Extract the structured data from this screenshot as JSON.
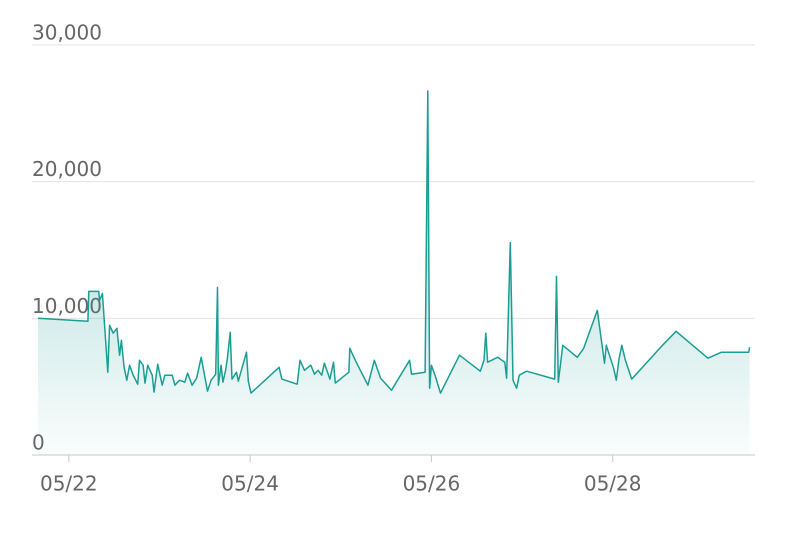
{
  "chart_data": {
    "type": "line",
    "x": [
      21.66,
      22.21,
      22.22,
      22.33,
      22.34,
      22.37,
      22.43,
      22.45,
      22.49,
      22.53,
      22.56,
      22.58,
      22.61,
      22.64,
      22.67,
      22.71,
      22.76,
      22.78,
      22.82,
      22.84,
      22.87,
      22.92,
      22.94,
      22.98,
      23.03,
      23.06,
      23.14,
      23.17,
      23.22,
      23.28,
      23.31,
      23.36,
      23.41,
      23.46,
      23.53,
      23.57,
      23.62,
      23.64,
      23.65,
      23.68,
      23.7,
      23.73,
      23.75,
      23.78,
      23.8,
      23.85,
      23.87,
      23.96,
      23.98,
      24.01,
      24.32,
      24.35,
      24.52,
      24.55,
      24.6,
      24.67,
      24.71,
      24.75,
      24.79,
      24.82,
      24.88,
      24.92,
      24.94,
      25.09,
      25.1,
      25.16,
      25.3,
      25.37,
      25.44,
      25.56,
      25.76,
      25.78,
      25.93,
      25.96,
      25.98,
      26.0,
      26.04,
      26.1,
      26.31,
      26.54,
      26.58,
      26.6,
      26.62,
      26.73,
      26.81,
      26.83,
      26.87,
      26.9,
      26.94,
      26.97,
      27.05,
      27.36,
      27.38,
      27.4,
      27.45,
      27.61,
      27.68,
      27.83,
      27.91,
      27.93,
      28.01,
      28.04,
      28.07,
      28.1,
      28.14,
      28.21,
      28.54,
      28.7,
      29.05,
      29.2,
      29.5,
      29.51
    ],
    "series": [
      {
        "color": "#1a9e94",
        "values": [
          10000,
          9780,
          11970,
          11970,
          11310,
          11820,
          6060,
          9490,
          8910,
          9270,
          7300,
          8390,
          6420,
          5470,
          6570,
          5840,
          5180,
          6930,
          6570,
          5260,
          6570,
          5840,
          4600,
          6640,
          5110,
          5840,
          5840,
          5110,
          5470,
          5330,
          5990,
          5110,
          5620,
          7150,
          4670,
          5470,
          5910,
          12260,
          5110,
          6570,
          5330,
          6200,
          7080,
          8980,
          5550,
          6060,
          5400,
          7520,
          5400,
          4530,
          6420,
          5550,
          5180,
          6930,
          6200,
          6570,
          5910,
          6200,
          5840,
          6720,
          5550,
          6790,
          5260,
          6060,
          7810,
          6930,
          5110,
          6930,
          5620,
          4740,
          6930,
          5910,
          6060,
          26640,
          4890,
          6570,
          5840,
          4530,
          7300,
          6130,
          6930,
          8910,
          6790,
          7150,
          6790,
          5620,
          15550,
          5470,
          4890,
          5840,
          6130,
          5550,
          13070,
          5330,
          8030,
          7150,
          7810,
          10580,
          6720,
          8030,
          6350,
          5470,
          7010,
          8030,
          6930,
          5550,
          7960,
          9050,
          7080,
          7520,
          7520,
          7880
        ]
      }
    ],
    "xlim": [
      21.66,
      29.57
    ],
    "xticks": [
      {
        "value": 22,
        "label": "05/22"
      },
      {
        "value": 24,
        "label": "05/24"
      },
      {
        "value": 26,
        "label": "05/26"
      },
      {
        "value": 28,
        "label": "05/28"
      }
    ],
    "ylim": [
      0,
      30000
    ],
    "yticks": [
      0,
      {
        "value": 10000,
        "label": "10,000"
      },
      {
        "value": 20000,
        "label": "20,000"
      },
      {
        "value": 30000,
        "label": "30,000"
      }
    ],
    "grid": true
  }
}
